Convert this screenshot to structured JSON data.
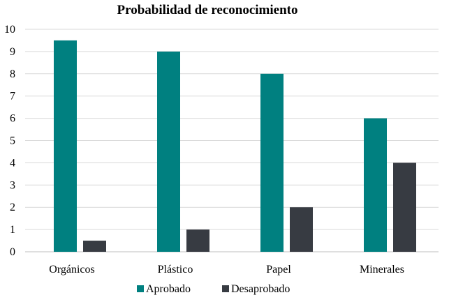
{
  "chart_data": {
    "type": "bar",
    "title": "Probabilidad de reconocimiento",
    "xlabel": "",
    "ylabel": "",
    "categories": [
      "Orgánicos",
      "Plástico",
      "Papel",
      "Minerales"
    ],
    "series": [
      {
        "name": "Aprobado",
        "values": [
          9.5,
          9,
          8,
          6
        ],
        "color": "#008080"
      },
      {
        "name": "Desaprobado",
        "values": [
          0.5,
          1,
          2,
          4
        ],
        "color": "#373b42"
      }
    ],
    "ylim": [
      0,
      10
    ],
    "yticks": [
      "0",
      "1",
      "2",
      "3",
      "4",
      "5",
      "6",
      "7",
      "8",
      "9",
      "10"
    ],
    "grid": true,
    "legend_position": "bottom"
  }
}
